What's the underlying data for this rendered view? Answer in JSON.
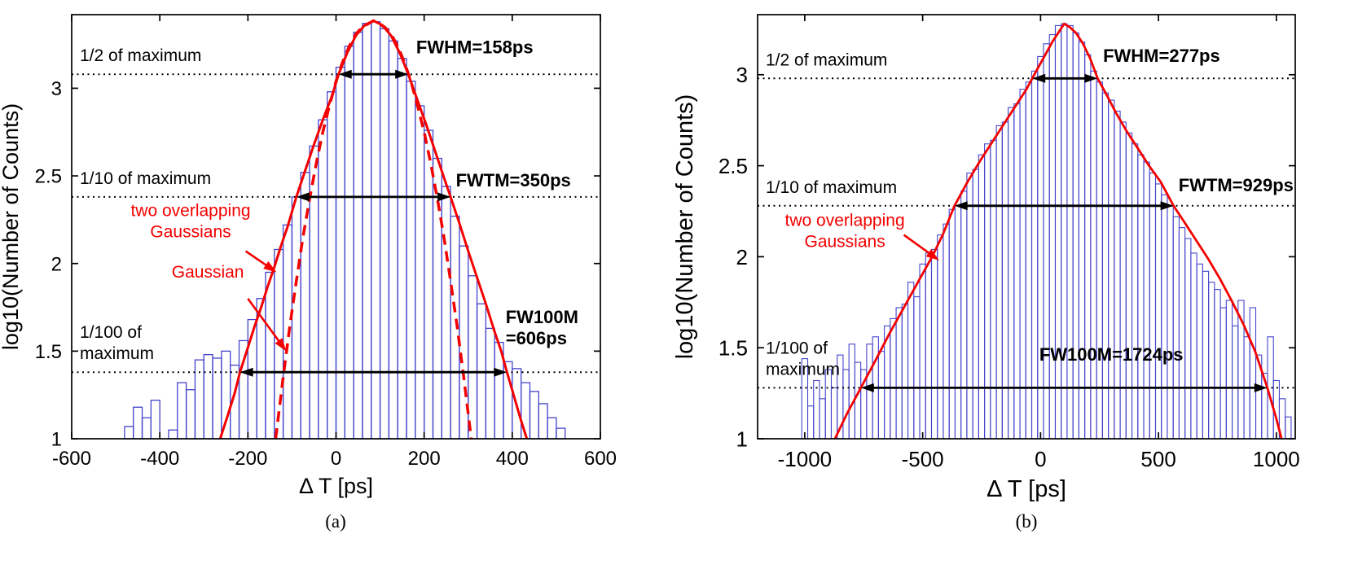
{
  "chart_data": [
    {
      "id": "a",
      "type": "bar",
      "caption": "(a)",
      "xlabel": "Δ T [ps]",
      "ylabel": "log10(Number of Counts)",
      "xlim": [
        -600,
        600
      ],
      "ylim": [
        1,
        3.42
      ],
      "xticks": [
        -600,
        -400,
        -200,
        0,
        200,
        400,
        600
      ],
      "yticks": [
        1,
        1.5,
        2,
        2.5,
        3
      ],
      "grid": false,
      "legend": "none",
      "bar_color": "#4444cc",
      "curve_color": "#f40000",
      "bin_width": 20,
      "histogram": {
        "bin_centers": [
          -470,
          -450,
          -430,
          -410,
          -390,
          -370,
          -350,
          -330,
          -310,
          -290,
          -270,
          -250,
          -230,
          -210,
          -190,
          -170,
          -150,
          -130,
          -110,
          -90,
          -70,
          -50,
          -30,
          -10,
          10,
          30,
          50,
          70,
          90,
          110,
          130,
          150,
          170,
          190,
          210,
          230,
          250,
          270,
          290,
          310,
          330,
          350,
          370,
          390,
          410,
          430,
          450,
          470,
          490,
          510
        ],
        "log10_counts": [
          1.07,
          1.18,
          1.12,
          1.22,
          null,
          1.05,
          1.32,
          1.28,
          1.45,
          1.48,
          1.46,
          1.5,
          1.42,
          1.56,
          1.68,
          1.8,
          1.95,
          2.08,
          2.22,
          2.38,
          2.52,
          2.67,
          2.82,
          2.98,
          3.12,
          3.24,
          3.32,
          3.37,
          3.38,
          3.34,
          3.27,
          3.17,
          3.04,
          2.9,
          2.76,
          2.6,
          2.44,
          2.27,
          2.1,
          1.93,
          1.77,
          1.63,
          1.55,
          1.44,
          1.4,
          1.32,
          1.27,
          1.2,
          1.12,
          1.06
        ]
      },
      "fit_curves": [
        {
          "name": "two overlapping Gaussians",
          "style": "solid",
          "color": "#f40000",
          "width": 3,
          "points": [
            [
              -263,
              1.0
            ],
            [
              -245,
              1.14
            ],
            [
              -230,
              1.26
            ],
            [
              -218,
              1.38
            ],
            [
              -200,
              1.52
            ],
            [
              -185,
              1.64
            ],
            [
              -170,
              1.75
            ],
            [
              -155,
              1.87
            ],
            [
              -140,
              1.98
            ],
            [
              -125,
              2.1
            ],
            [
              -110,
              2.21
            ],
            [
              -90,
              2.38
            ],
            [
              -70,
              2.53
            ],
            [
              -50,
              2.68
            ],
            [
              -30,
              2.82
            ],
            [
              -10,
              2.95
            ],
            [
              6,
              3.08
            ],
            [
              25,
              3.2
            ],
            [
              45,
              3.3
            ],
            [
              65,
              3.36
            ],
            [
              85,
              3.385
            ],
            [
              105,
              3.36
            ],
            [
              125,
              3.3
            ],
            [
              145,
              3.2
            ],
            [
              164,
              3.08
            ],
            [
              185,
              2.93
            ],
            [
              205,
              2.79
            ],
            [
              225,
              2.64
            ],
            [
              245,
              2.49
            ],
            [
              260,
              2.38
            ],
            [
              280,
              2.23
            ],
            [
              300,
              2.07
            ],
            [
              320,
              1.92
            ],
            [
              340,
              1.77
            ],
            [
              360,
              1.61
            ],
            [
              375,
              1.5
            ],
            [
              388,
              1.38
            ],
            [
              402,
              1.26
            ],
            [
              418,
              1.12
            ],
            [
              433,
              1.0
            ]
          ]
        },
        {
          "name": "Gaussian",
          "style": "dashed",
          "color": "#f40000",
          "width": 3.5,
          "points": [
            [
              -137,
              1.0
            ],
            [
              -120,
              1.35
            ],
            [
              -105,
              1.64
            ],
            [
              -90,
              1.9
            ],
            [
              -75,
              2.15
            ],
            [
              -60,
              2.37
            ],
            [
              -45,
              2.57
            ],
            [
              -30,
              2.75
            ],
            [
              -15,
              2.9
            ],
            [
              0,
              3.04
            ],
            [
              15,
              3.15
            ],
            [
              30,
              3.24
            ],
            [
              45,
              3.31
            ],
            [
              60,
              3.35
            ],
            [
              85,
              3.385
            ],
            [
              110,
              3.35
            ],
            [
              125,
              3.31
            ],
            [
              140,
              3.24
            ],
            [
              155,
              3.15
            ],
            [
              170,
              3.04
            ],
            [
              185,
              2.9
            ],
            [
              200,
              2.75
            ],
            [
              215,
              2.57
            ],
            [
              230,
              2.37
            ],
            [
              245,
              2.15
            ],
            [
              260,
              1.9
            ],
            [
              275,
              1.64
            ],
            [
              290,
              1.35
            ],
            [
              307,
              1.0
            ]
          ]
        }
      ],
      "reference_lines": [
        {
          "y": 3.08,
          "label": "1/2 of maximum"
        },
        {
          "y": 2.38,
          "label": "1/10 of maximum"
        },
        {
          "y": 1.38,
          "label": "1/100 of\nmaximum"
        }
      ],
      "width_arrows": [
        {
          "y": 3.08,
          "x1": 6,
          "x2": 164,
          "label": "FWHM=158ps",
          "label_x": 182,
          "label_y": 3.2,
          "anchor": "start"
        },
        {
          "y": 2.38,
          "x1": -90,
          "x2": 260,
          "label": "FWTM=350ps",
          "label_x": 272,
          "label_y": 2.44,
          "anchor": "start"
        },
        {
          "y": 1.38,
          "x1": -218,
          "x2": 388,
          "label": "FW100M\n=606ps",
          "label_x": 385,
          "label_y": 1.66,
          "anchor": "start"
        }
      ],
      "annotations": [
        {
          "text": "two overlapping\nGaussians",
          "x": -330,
          "y": 2.27,
          "anchor": "middle",
          "arrow_from": [
            -205,
            2.07
          ],
          "arrow_to": [
            -135,
            1.95
          ]
        },
        {
          "text": "Gaussian",
          "x": -291,
          "y": 1.92,
          "anchor": "middle",
          "arrow_from": [
            -200,
            1.8
          ],
          "arrow_to": [
            -113,
            1.5
          ]
        }
      ]
    },
    {
      "id": "b",
      "type": "bar",
      "caption": "(b)",
      "xlabel": "Δ T [ps]",
      "ylabel": "log10(Number of Counts)",
      "xlim": [
        -1200,
        1080
      ],
      "ylim": [
        1,
        3.33
      ],
      "xticks": [
        -1000,
        -500,
        0,
        500,
        1000
      ],
      "yticks": [
        1,
        1.5,
        2,
        2.5,
        3
      ],
      "grid": false,
      "legend": "none",
      "bar_color": "#4444cc",
      "curve_color": "#f40000",
      "bin_width": 25,
      "histogram": {
        "bin_centers": [
          -1000,
          -975,
          -950,
          -925,
          -900,
          -875,
          -850,
          -825,
          -800,
          -775,
          -750,
          -725,
          -700,
          -675,
          -650,
          -625,
          -600,
          -575,
          -550,
          -525,
          -500,
          -475,
          -450,
          -425,
          -400,
          -375,
          -350,
          -325,
          -300,
          -275,
          -250,
          -225,
          -200,
          -175,
          -150,
          -125,
          -100,
          -75,
          -50,
          -25,
          0,
          25,
          50,
          75,
          100,
          125,
          150,
          175,
          200,
          225,
          250,
          275,
          300,
          325,
          350,
          375,
          400,
          425,
          450,
          475,
          500,
          525,
          550,
          575,
          600,
          625,
          650,
          675,
          700,
          725,
          750,
          775,
          800,
          825,
          850,
          875,
          900,
          925,
          950,
          975,
          1000,
          1025,
          1050
        ],
        "log10_counts": [
          1.44,
          1.18,
          1.32,
          1.22,
          1.38,
          1.28,
          1.46,
          1.38,
          1.52,
          1.42,
          1.38,
          1.52,
          1.56,
          1.48,
          1.62,
          1.66,
          1.72,
          1.74,
          1.86,
          1.78,
          1.96,
          2.02,
          2.04,
          2.12,
          2.18,
          2.26,
          2.28,
          2.36,
          2.46,
          2.48,
          2.56,
          2.62,
          2.64,
          2.72,
          2.74,
          2.82,
          2.84,
          2.92,
          2.96,
          3.02,
          3.1,
          3.17,
          3.22,
          3.27,
          3.28,
          3.27,
          3.23,
          3.18,
          3.11,
          3.02,
          2.96,
          2.9,
          2.86,
          2.8,
          2.74,
          2.68,
          2.62,
          2.56,
          2.52,
          2.46,
          2.4,
          2.34,
          2.28,
          2.22,
          2.16,
          2.1,
          2.02,
          1.96,
          1.92,
          1.86,
          1.82,
          1.72,
          1.76,
          1.62,
          1.76,
          1.56,
          1.72,
          1.46,
          1.36,
          1.56,
          1.32,
          1.22,
          1.12
        ]
      },
      "fit_curves": [
        {
          "name": "two overlapping Gaussians",
          "style": "solid",
          "color": "#f40000",
          "width": 2.8,
          "points": [
            [
              -872,
              1.0
            ],
            [
              -820,
              1.14
            ],
            [
              -762,
              1.28
            ],
            [
              -700,
              1.43
            ],
            [
              -640,
              1.58
            ],
            [
              -580,
              1.72
            ],
            [
              -520,
              1.86
            ],
            [
              -460,
              2.0
            ],
            [
              -415,
              2.12
            ],
            [
              -365,
              2.28
            ],
            [
              -310,
              2.41
            ],
            [
              -255,
              2.53
            ],
            [
              -200,
              2.64
            ],
            [
              -150,
              2.74
            ],
            [
              -100,
              2.84
            ],
            [
              -60,
              2.92
            ],
            [
              -35,
              2.98
            ],
            [
              -10,
              3.04
            ],
            [
              20,
              3.11
            ],
            [
              50,
              3.18
            ],
            [
              75,
              3.23
            ],
            [
              100,
              3.28
            ],
            [
              125,
              3.26
            ],
            [
              150,
              3.23
            ],
            [
              180,
              3.17
            ],
            [
              210,
              3.09
            ],
            [
              242,
              2.98
            ],
            [
              280,
              2.89
            ],
            [
              320,
              2.79
            ],
            [
              365,
              2.69
            ],
            [
              410,
              2.6
            ],
            [
              460,
              2.5
            ],
            [
              510,
              2.41
            ],
            [
              564,
              2.28
            ],
            [
              610,
              2.19
            ],
            [
              660,
              2.09
            ],
            [
              710,
              1.99
            ],
            [
              760,
              1.88
            ],
            [
              810,
              1.76
            ],
            [
              860,
              1.63
            ],
            [
              910,
              1.48
            ],
            [
              962,
              1.28
            ],
            [
              1000,
              1.11
            ],
            [
              1022,
              1.0
            ]
          ]
        }
      ],
      "reference_lines": [
        {
          "y": 2.98,
          "label": "1/2 of maximum"
        },
        {
          "y": 2.28,
          "label": "1/10 of maximum"
        },
        {
          "y": 1.28,
          "label": "1/100 of\nmaximum"
        }
      ],
      "width_arrows": [
        {
          "y": 2.98,
          "x1": -35,
          "x2": 242,
          "label": "FWHM=277ps",
          "label_x": 265,
          "label_y": 3.07,
          "anchor": "start"
        },
        {
          "y": 2.28,
          "x1": -365,
          "x2": 564,
          "label": "FWTM=929ps",
          "label_x": 585,
          "label_y": 2.36,
          "anchor": "start"
        },
        {
          "y": 1.28,
          "x1": -762,
          "x2": 962,
          "label": "FW100M=1724ps",
          "label_x": 300,
          "label_y": 1.43,
          "anchor": "middle"
        }
      ],
      "annotations": [
        {
          "text": "two overlapping\nGaussians",
          "x": -830,
          "y": 2.17,
          "anchor": "middle",
          "arrow_from": [
            -580,
            2.12
          ],
          "arrow_to": [
            -430,
            1.98
          ]
        }
      ]
    }
  ]
}
